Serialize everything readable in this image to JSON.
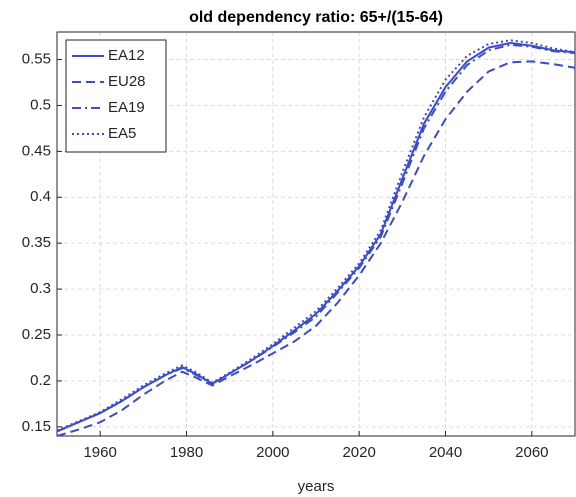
{
  "chart_data": {
    "type": "line",
    "title": "old dependency ratio: 65+/(15-64)",
    "xlabel": "years",
    "x": [
      1950,
      1955,
      1960,
      1965,
      1970,
      1975,
      1979,
      1982,
      1986,
      1990,
      1995,
      2000,
      2005,
      2010,
      2015,
      2020,
      2025,
      2030,
      2035,
      2040,
      2045,
      2050,
      2055,
      2060,
      2065,
      2070
    ],
    "series": [
      {
        "name": "EA12",
        "color": "#3a4ccc",
        "linestyle": "solid",
        "values": [
          0.145,
          0.155,
          0.165,
          0.178,
          0.193,
          0.206,
          0.215,
          0.208,
          0.197,
          0.208,
          0.222,
          0.238,
          0.255,
          0.273,
          0.298,
          0.325,
          0.36,
          0.42,
          0.48,
          0.52,
          0.548,
          0.563,
          0.568,
          0.565,
          0.56,
          0.558
        ]
      },
      {
        "name": "EU28",
        "color": "#3a4ccc",
        "linestyle": "dashed",
        "values": [
          0.14,
          0.147,
          0.155,
          0.168,
          0.185,
          0.2,
          0.21,
          0.204,
          0.195,
          0.205,
          0.217,
          0.23,
          0.243,
          0.26,
          0.285,
          0.315,
          0.35,
          0.395,
          0.445,
          0.485,
          0.515,
          0.537,
          0.547,
          0.548,
          0.545,
          0.541
        ]
      },
      {
        "name": "EA19",
        "color": "#3a4ccc",
        "linestyle": "dashdot",
        "values": [
          0.145,
          0.155,
          0.165,
          0.178,
          0.193,
          0.206,
          0.214,
          0.207,
          0.197,
          0.208,
          0.222,
          0.237,
          0.253,
          0.27,
          0.296,
          0.323,
          0.357,
          0.415,
          0.475,
          0.515,
          0.544,
          0.56,
          0.566,
          0.564,
          0.559,
          0.557
        ]
      },
      {
        "name": "EA5",
        "color": "#3a4ccc",
        "linestyle": "dotted",
        "values": [
          0.146,
          0.156,
          0.166,
          0.18,
          0.195,
          0.208,
          0.217,
          0.21,
          0.198,
          0.209,
          0.224,
          0.24,
          0.258,
          0.276,
          0.301,
          0.328,
          0.364,
          0.427,
          0.487,
          0.528,
          0.554,
          0.567,
          0.571,
          0.568,
          0.562,
          0.558
        ]
      }
    ],
    "xlim": [
      1950,
      2070
    ],
    "ylim": [
      0.14,
      0.58
    ],
    "xticks": [
      1960,
      1980,
      2000,
      2020,
      2040,
      2060
    ],
    "yticks": [
      0.15,
      0.2,
      0.25,
      0.3,
      0.35,
      0.4,
      0.45,
      0.5,
      0.55
    ],
    "grid": true,
    "legend": "upper left"
  }
}
